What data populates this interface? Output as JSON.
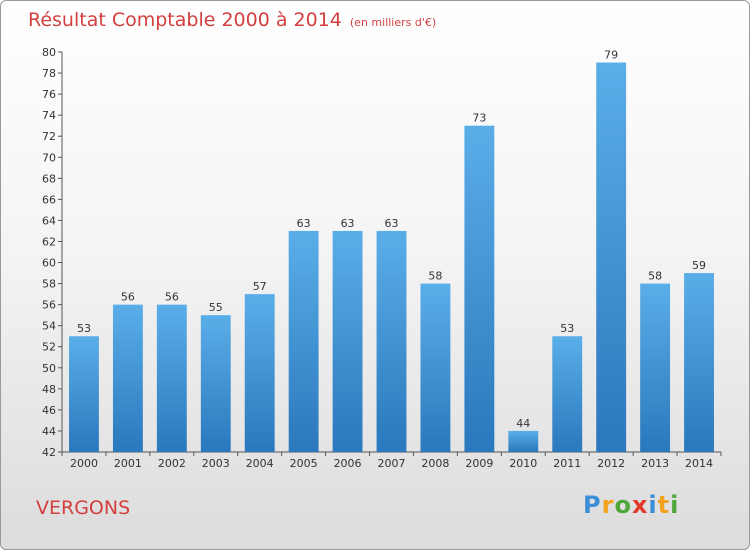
{
  "title": "Résultat Comptable 2000 à 2014",
  "subtitle": "(en milliers d'€)",
  "commune": "VERGONS",
  "logo_text": "Proxiti",
  "colors": {
    "title": "#d33f3f",
    "bar_top": "#5aaee8",
    "bar_bottom": "#2a78bd",
    "axis": "#555555"
  },
  "chart_data": {
    "type": "bar",
    "title": "Résultat Comptable 2000 à 2014",
    "subtitle": "(en milliers d'€)",
    "categories": [
      "2000",
      "2001",
      "2002",
      "2003",
      "2004",
      "2005",
      "2006",
      "2007",
      "2008",
      "2009",
      "2010",
      "2011",
      "2012",
      "2013",
      "2014"
    ],
    "values": [
      53,
      56,
      56,
      55,
      57,
      63,
      63,
      63,
      58,
      73,
      44,
      53,
      79,
      58,
      59
    ],
    "ylim": [
      42,
      80
    ],
    "yticks": [
      42,
      44,
      46,
      48,
      50,
      52,
      54,
      56,
      58,
      60,
      62,
      64,
      66,
      68,
      70,
      72,
      74,
      76,
      78,
      80
    ],
    "grid": false,
    "legend": "none"
  }
}
